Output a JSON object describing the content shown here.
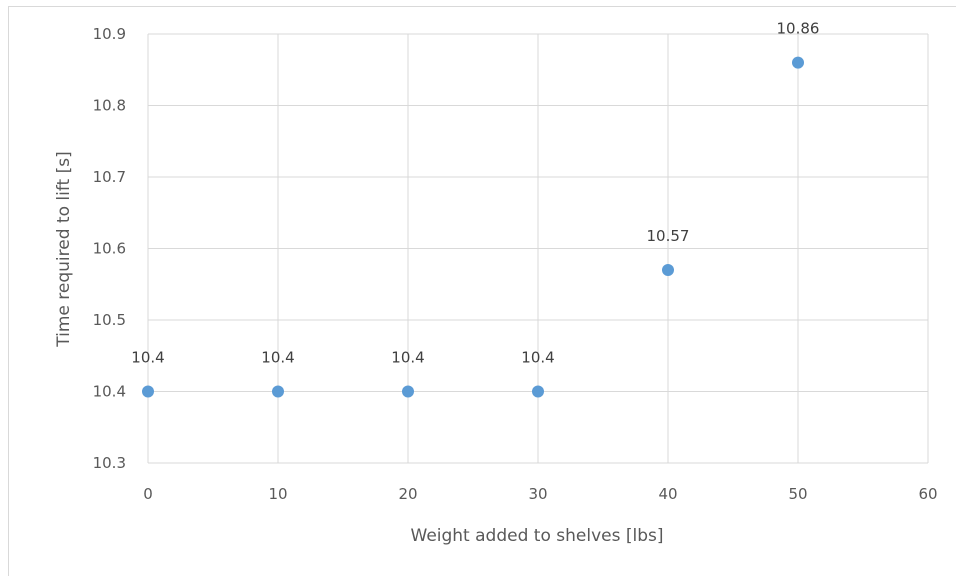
{
  "chart_data": {
    "type": "scatter",
    "title": "",
    "xlabel": "Weight added to shelves [lbs]",
    "ylabel": "Time required to lift [s]",
    "xlim": [
      0,
      60
    ],
    "ylim": [
      10.3,
      10.9
    ],
    "x_ticks": [
      "0",
      "10",
      "20",
      "30",
      "40",
      "50",
      "60"
    ],
    "y_ticks": [
      "10.3",
      "10.4",
      "10.5",
      "10.6",
      "10.7",
      "10.8",
      "10.9"
    ],
    "grid": true,
    "series": [
      {
        "color": "#5b9bd5",
        "points": [
          {
            "x": 0,
            "y": 10.4,
            "label": "10.4"
          },
          {
            "x": 10,
            "y": 10.4,
            "label": "10.4"
          },
          {
            "x": 20,
            "y": 10.4,
            "label": "10.4"
          },
          {
            "x": 30,
            "y": 10.4,
            "label": "10.4"
          },
          {
            "x": 40,
            "y": 10.57,
            "label": "10.57"
          },
          {
            "x": 50,
            "y": 10.86,
            "label": "10.86"
          }
        ]
      }
    ]
  }
}
